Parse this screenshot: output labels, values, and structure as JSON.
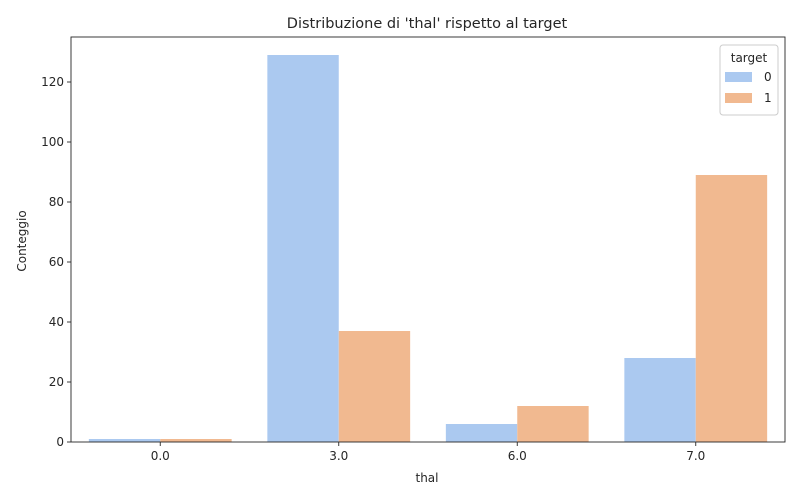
{
  "chart_data": {
    "type": "bar",
    "title": "Distribuzione di 'thal' rispetto al target",
    "xlabel": "thal",
    "ylabel": "Conteggio",
    "categories": [
      "0.0",
      "3.0",
      "6.0",
      "7.0"
    ],
    "ylim": [
      0,
      135
    ],
    "yticks": [
      0,
      20,
      40,
      60,
      80,
      100,
      120
    ],
    "grid": false,
    "legend": {
      "title": "target",
      "placement": "top-right"
    },
    "series": [
      {
        "name": "0",
        "color": "#abc9f0",
        "values": [
          1,
          129,
          6,
          28
        ]
      },
      {
        "name": "1",
        "color": "#f1b990",
        "values": [
          1,
          37,
          12,
          89
        ]
      }
    ]
  }
}
